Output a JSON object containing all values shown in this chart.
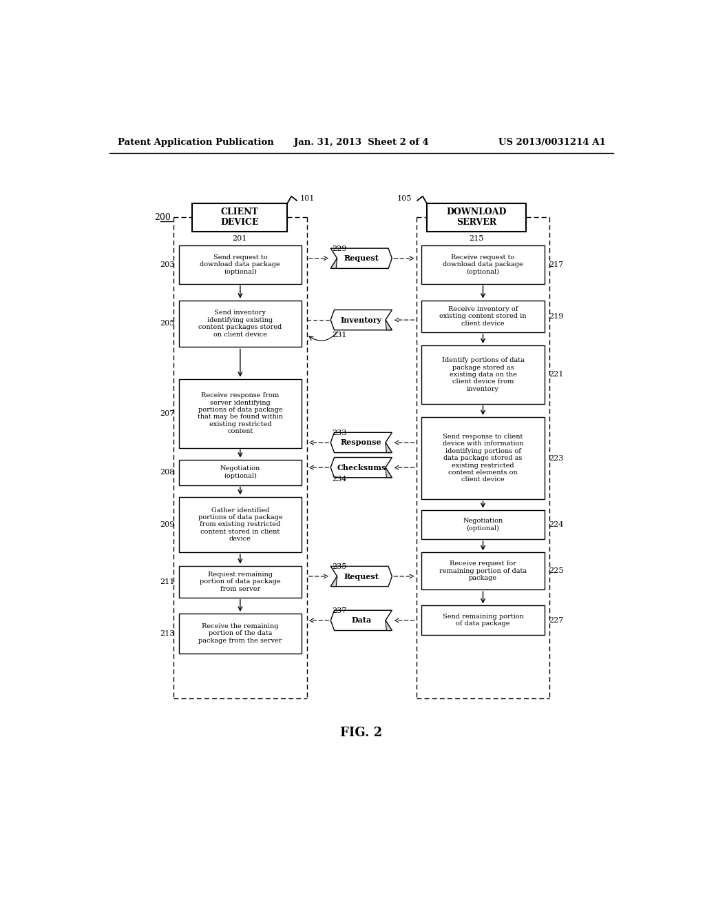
{
  "header_left": "Patent Application Publication",
  "header_center": "Jan. 31, 2013  Sheet 2 of 4",
  "header_right": "US 2013/0031214 A1",
  "fig_label": "FIG. 2",
  "bg_color": "#ffffff",
  "left_boxes": [
    {
      "num": "203",
      "text": "Send request to\ndownload data package\n(optional)"
    },
    {
      "num": "205",
      "text": "Send inventory\nidentifying existing\ncontent packages stored\non client device"
    },
    {
      "num": "207",
      "text": "Receive response from\nserver identifying\nportions of data package\nthat may be found within\nexisting restricted\ncontent"
    },
    {
      "num": "208",
      "text": "Negotiation\n(optional)"
    },
    {
      "num": "209",
      "text": "Gather identified\nportions of data package\nfrom existing restricted\ncontent stored in client\ndevice"
    },
    {
      "num": "211",
      "text": "Request remaining\nportion of data package\nfrom server"
    },
    {
      "num": "213",
      "text": "Receive the remaining\nportion of the data\npackage from the server"
    }
  ],
  "right_boxes": [
    {
      "num": "217",
      "text": "Receive request to\ndownload data package\n(optional)"
    },
    {
      "num": "219",
      "text": "Receive inventory of\nexisting content stored in\nclient device"
    },
    {
      "num": "221",
      "text": "Identify portions of data\npackage stored as\nexisting data on the\nclient device from\ninventory"
    },
    {
      "num": "223",
      "text": "Send response to client\ndevice with information\nidentifying portions of\ndata package stored as\nexisting restricted\ncontent elements on\nclient device"
    },
    {
      "num": "224",
      "text": "Negotiation\n(optional)"
    },
    {
      "num": "225",
      "text": "Receive request for\nremaining portion of data\npackage"
    },
    {
      "num": "227",
      "text": "Send remaining portion\nof data package"
    }
  ],
  "ribbons": [
    {
      "num": "229",
      "text": "Request",
      "direction": "right"
    },
    {
      "num": "231",
      "text": "Inventory",
      "direction": "left"
    },
    {
      "num": "233",
      "text": "Response",
      "direction": "left"
    },
    {
      "num": "234",
      "text": "Checksums",
      "direction": "left"
    },
    {
      "num": "235",
      "text": "Request",
      "direction": "right"
    },
    {
      "num": "237",
      "text": "Data",
      "direction": "left"
    }
  ],
  "client_title": "CLIENT\nDEVICE",
  "client_ref": "101",
  "client_num": "200",
  "client_col_num": "201",
  "server_title": "DOWNLOAD\nSERVER",
  "server_ref": "105",
  "server_col_num": "215"
}
